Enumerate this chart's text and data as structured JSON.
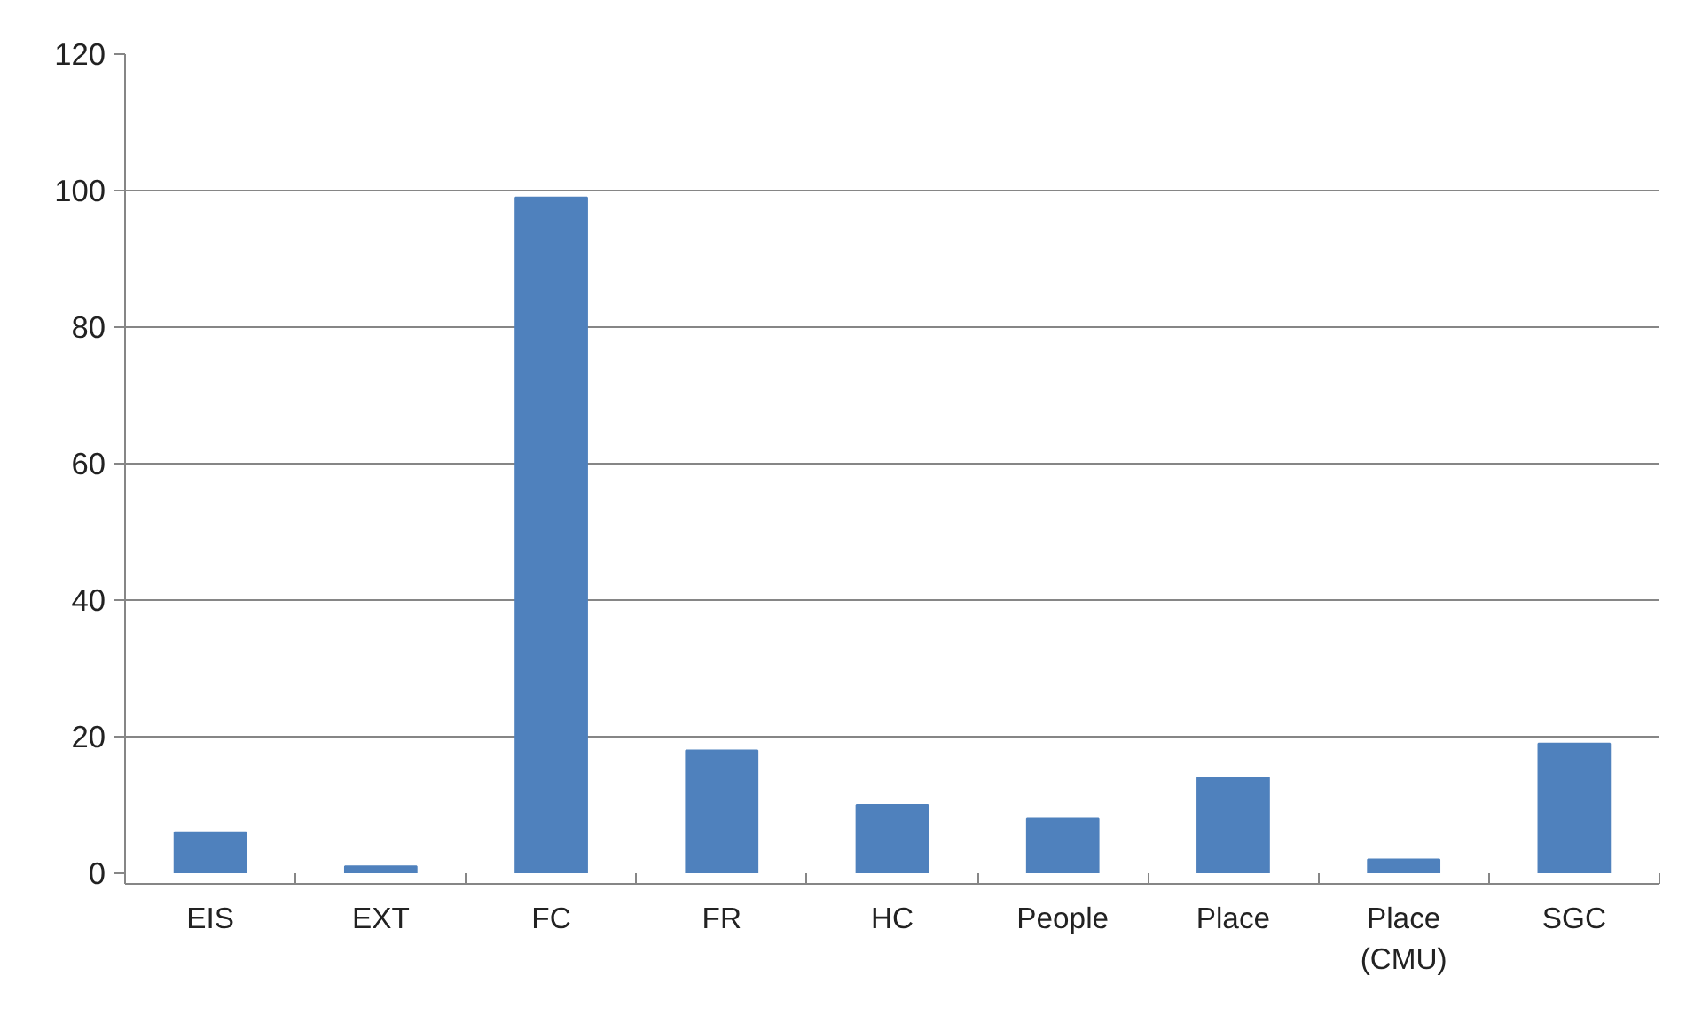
{
  "chart_data": {
    "type": "bar",
    "categories": [
      "EIS",
      "EXT",
      "FC",
      "FR",
      "HC",
      "People",
      "Place",
      "Place\n(CMU)",
      "SGC"
    ],
    "values": [
      6,
      1,
      99,
      18,
      10,
      8,
      14,
      2,
      19
    ],
    "color": "#4f81bd",
    "ylim": [
      0,
      120
    ],
    "yticks": [
      0,
      20,
      40,
      60,
      80,
      100,
      120
    ],
    "grid": "y"
  }
}
